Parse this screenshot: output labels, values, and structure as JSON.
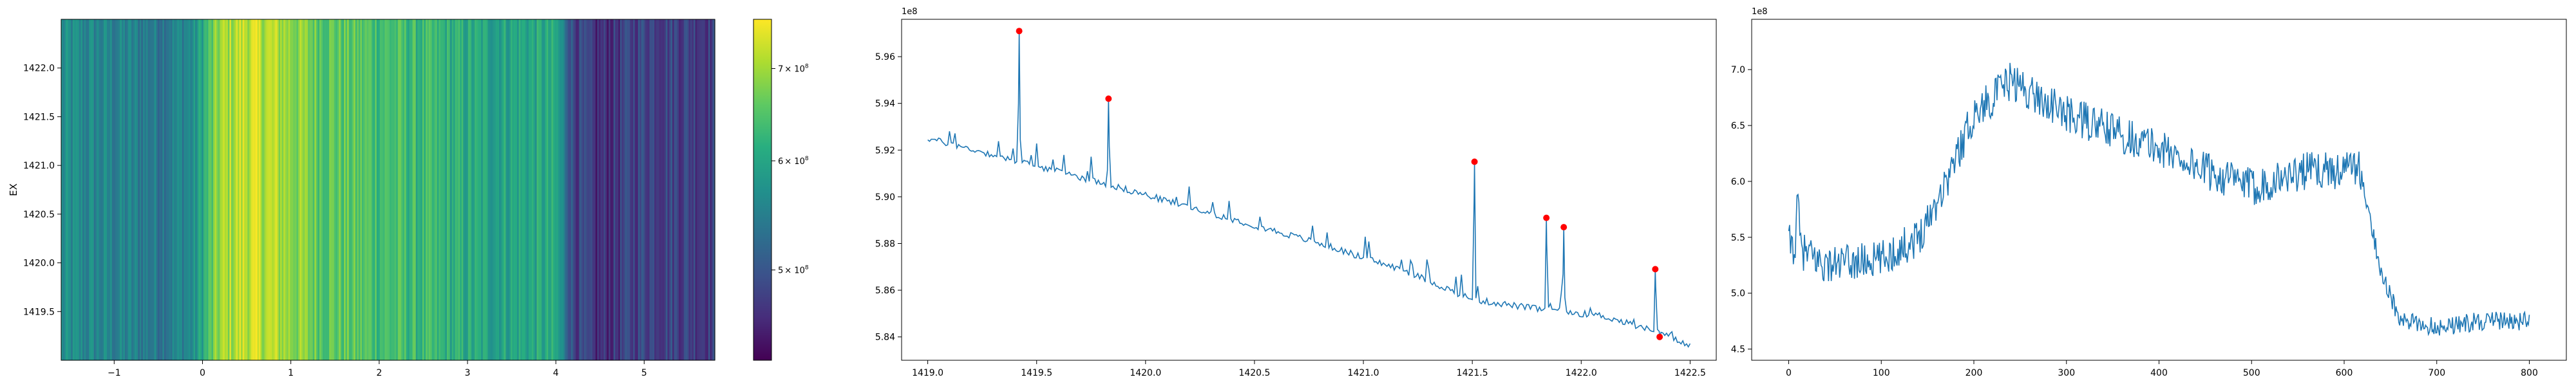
{
  "chart_data": [
    {
      "type": "heatmap",
      "title": "",
      "xlabel": "",
      "ylabel": "EX",
      "xlim": [
        -1.6,
        5.8
      ],
      "ylim": [
        1419.0,
        1422.5
      ],
      "xticks": [
        "−1",
        "0",
        "1",
        "2",
        "3",
        "4",
        "5"
      ],
      "xtick_values": [
        -1,
        0,
        1,
        2,
        3,
        4,
        5
      ],
      "yticks": [
        "1419.5",
        "1420.0",
        "1420.5",
        "1421.0",
        "1421.5",
        "1422.0"
      ],
      "ytick_values": [
        1419.5,
        1420.0,
        1420.5,
        1421.0,
        1421.5,
        1422.0
      ],
      "colormap": "viridis",
      "colorbar": {
        "scale": "log",
        "range": [
          430000000,
          760000000
        ],
        "tick_values": [
          500000000,
          600000000,
          700000000
        ],
        "tick_mantissa": [
          "5",
          "6",
          "7"
        ],
        "tick_base": "× 10",
        "tick_exponent": "8"
      },
      "column_profile": {
        "anchors_x": [
          -1.6,
          -1.0,
          -0.5,
          -0.1,
          0.2,
          0.5,
          0.9,
          1.3,
          1.8,
          2.3,
          2.8,
          3.2,
          3.6,
          4.0,
          4.2,
          4.45,
          5.0,
          5.8
        ],
        "anchors_value": [
          565000000,
          555000000,
          545000000,
          565000000,
          695000000,
          725000000,
          705000000,
          665000000,
          650000000,
          635000000,
          615000000,
          600000000,
          605000000,
          600000000,
          490000000,
          460000000,
          490000000,
          480000000
        ]
      }
    },
    {
      "type": "line",
      "title": "",
      "xlabel": "",
      "ylabel": "",
      "offset_label": "1e8",
      "xlim": [
        1418.88,
        1422.62
      ],
      "ylim": [
        5.83,
        5.976
      ],
      "xticks": [
        "1419.0",
        "1419.5",
        "1420.0",
        "1420.5",
        "1421.0",
        "1421.5",
        "1422.0",
        "1422.5"
      ],
      "xtick_values": [
        1419.0,
        1419.5,
        1420.0,
        1420.5,
        1421.0,
        1421.5,
        1422.0,
        1422.5
      ],
      "yticks": [
        "5.84",
        "5.86",
        "5.88",
        "5.90",
        "5.92",
        "5.94",
        "5.96"
      ],
      "ytick_values": [
        5.84,
        5.86,
        5.88,
        5.9,
        5.92,
        5.94,
        5.96
      ],
      "x_start": 1419.0,
      "x_end": 1422.5,
      "baseline_anchors_x": [
        1419.0,
        1419.3,
        1419.8,
        1420.3,
        1420.8,
        1421.2,
        1421.5,
        1421.8,
        1422.1,
        1422.35,
        1422.5
      ],
      "baseline_anchors_y": [
        5.925,
        5.918,
        5.906,
        5.893,
        5.88,
        5.868,
        5.856,
        5.852,
        5.849,
        5.842,
        5.836
      ],
      "peaks": [
        {
          "x": 1419.42,
          "y": 5.971
        },
        {
          "x": 1419.83,
          "y": 5.942
        },
        {
          "x": 1421.51,
          "y": 5.915
        },
        {
          "x": 1421.84,
          "y": 5.891
        },
        {
          "x": 1421.92,
          "y": 5.887
        },
        {
          "x": 1422.34,
          "y": 5.869
        },
        {
          "x": 1422.36,
          "y": 5.84
        }
      ],
      "marker_color": "#ff0000",
      "line_color": "#1f77b4"
    },
    {
      "type": "line",
      "title": "",
      "xlabel": "",
      "ylabel": "",
      "offset_label": "1e8",
      "xlim": [
        -40,
        840
      ],
      "ylim": [
        4.4,
        7.45
      ],
      "xticks": [
        "0",
        "100",
        "200",
        "300",
        "400",
        "500",
        "600",
        "700",
        "800"
      ],
      "xtick_values": [
        0,
        100,
        200,
        300,
        400,
        500,
        600,
        700,
        800
      ],
      "yticks": [
        "4.5",
        "5.0",
        "5.5",
        "6.0",
        "6.5",
        "7.0"
      ],
      "ytick_values": [
        4.5,
        5.0,
        5.5,
        6.0,
        6.5,
        7.0
      ],
      "x_start": 0,
      "x_end": 800,
      "trend_anchors_x": [
        0,
        40,
        100,
        140,
        170,
        200,
        240,
        280,
        300,
        350,
        400,
        450,
        500,
        560,
        600,
        615,
        640,
        660,
        700,
        750,
        800
      ],
      "trend_anchors_y": [
        5.45,
        5.25,
        5.3,
        5.5,
        6.0,
        6.6,
        6.9,
        6.7,
        6.6,
        6.45,
        6.3,
        6.1,
        5.95,
        6.1,
        6.1,
        6.15,
        5.2,
        4.75,
        4.7,
        4.75,
        4.75
      ],
      "line_color": "#1f77b4"
    }
  ]
}
